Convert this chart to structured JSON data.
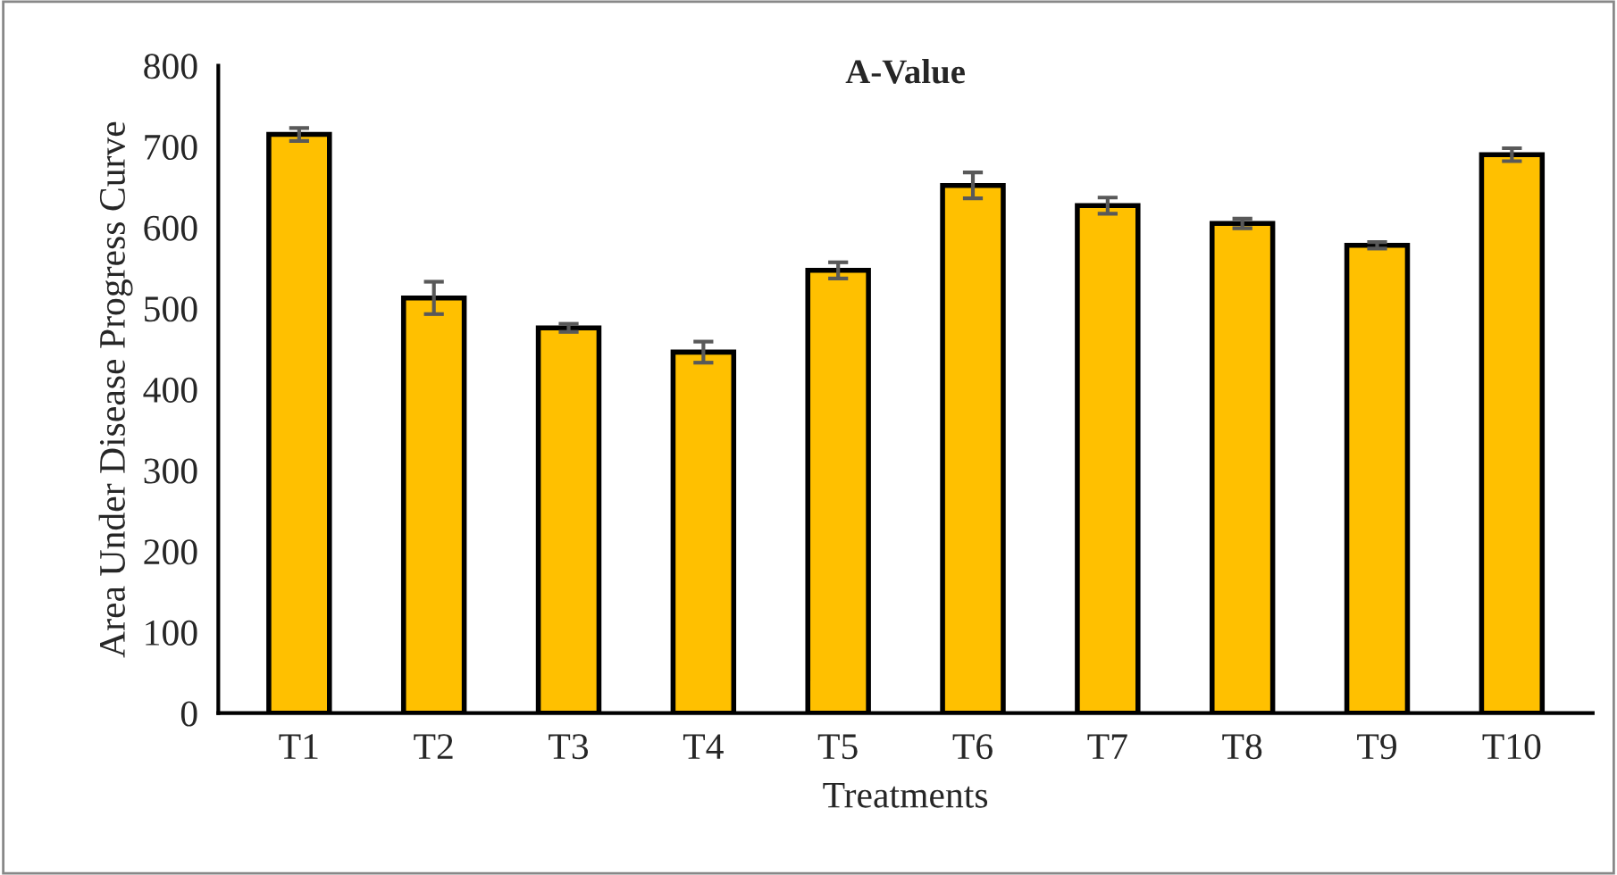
{
  "chart_data": {
    "type": "bar",
    "title": "A-Value",
    "xlabel": "Treatments",
    "ylabel": "Area Under Disease Progress Curve",
    "categories": [
      "T1",
      "T2",
      "T3",
      "T4",
      "T5",
      "T6",
      "T7",
      "T8",
      "T9",
      "T10"
    ],
    "values": [
      715,
      513,
      476,
      446,
      547,
      652,
      627,
      605,
      578,
      690
    ],
    "errors": [
      8,
      20,
      5,
      13,
      10,
      16,
      10,
      6,
      4,
      8
    ],
    "color": "#ffc000",
    "ylim": [
      0,
      800
    ],
    "yticks": [
      0,
      100,
      200,
      300,
      400,
      500,
      600,
      700,
      800
    ],
    "grid": false,
    "legend": false
  }
}
